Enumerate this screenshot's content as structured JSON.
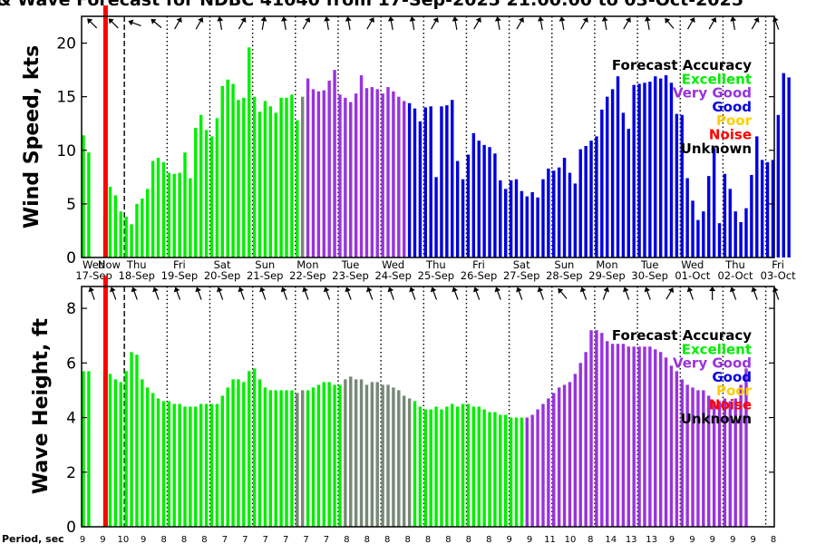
{
  "title": "& Wave Forecast for NDBC 41040 from 17-Sep-2025 21:00:00 to 03-Oct-2025",
  "colors": {
    "excellent": "#00ee00",
    "very_good": "#9933dd",
    "good": "#0000dd",
    "poor": "#ffcc00",
    "noise": "#ff0000",
    "unknown": "#000000",
    "transition": "#778877"
  },
  "day_labels": [
    {
      "dow": "Wed",
      "date": "17-Sep"
    },
    {
      "dow": "Thu",
      "date": "18-Sep"
    },
    {
      "dow": "Fri",
      "date": "19-Sep"
    },
    {
      "dow": "Sat",
      "date": "20-Sep"
    },
    {
      "dow": "Sun",
      "date": "21-Sep"
    },
    {
      "dow": "Mon",
      "date": "22-Sep"
    },
    {
      "dow": "Tue",
      "date": "23-Sep"
    },
    {
      "dow": "Wed",
      "date": "24-Sep"
    },
    {
      "dow": "Thu",
      "date": "25-Sep"
    },
    {
      "dow": "Fri",
      "date": "26-Sep"
    },
    {
      "dow": "Sat",
      "date": "27-Sep"
    },
    {
      "dow": "Sun",
      "date": "28-Sep"
    },
    {
      "dow": "Mon",
      "date": "29-Sep"
    },
    {
      "dow": "Tue",
      "date": "30-Sep"
    },
    {
      "dow": "Wed",
      "date": "01-Oct"
    },
    {
      "dow": "Thu",
      "date": "02-Oct"
    },
    {
      "dow": "Fri",
      "date": "03-Oct"
    }
  ],
  "now_label": "Now",
  "legend": {
    "title": "Forecast Accuracy",
    "items": [
      {
        "label": "Excellent",
        "key": "excellent"
      },
      {
        "label": "Very Good",
        "key": "very_good"
      },
      {
        "label": "Good",
        "key": "good"
      },
      {
        "label": "Poor",
        "key": "poor"
      },
      {
        "label": "Noise",
        "key": "noise"
      },
      {
        "label": "Unknown",
        "key": "unknown"
      }
    ]
  },
  "period_label": "Period, sec",
  "period_values": [
    "9",
    "9",
    "10",
    "9",
    "8",
    "8",
    "8",
    "7",
    "7",
    "7",
    "7",
    "7",
    "7",
    "8",
    "8",
    "8",
    "8",
    "8",
    "8",
    "8",
    "8",
    "9",
    "9",
    "11",
    "10",
    "8",
    "14",
    "13",
    "13",
    "9",
    "9",
    "9",
    "9",
    "9",
    "8"
  ],
  "chart_data": [
    {
      "type": "bar",
      "ylabel": "Wind Speed, kts",
      "ylim": [
        0,
        22.5
      ],
      "yticks": [
        0,
        5,
        10,
        15,
        20
      ],
      "x_range_days": [
        0,
        16.2
      ],
      "now_day": 0.56,
      "bar_spacing_days": 0.125,
      "grid": "dotted vertical lines at day boundaries; dashed before Now",
      "legend_position": "top-right",
      "series": [
        {
          "name": "Excellent",
          "color_key": "excellent",
          "x_start": 0.0,
          "values": [
            11.4,
            9.8,
            0,
            0,
            4.0,
            6.6,
            5.8,
            4.3,
            3.8,
            3.1,
            5.0,
            5.5,
            6.4,
            9.0,
            9.3,
            8.9,
            7.9,
            7.8,
            7.9,
            9.8,
            7.4,
            12.1,
            13.3,
            11.9,
            11.3,
            13.0,
            16.0,
            16.6,
            16.2,
            14.7,
            14.9,
            19.6,
            15.0,
            13.6,
            14.6,
            14.1,
            13.5,
            14.9,
            14.9,
            15.2,
            12.8
          ]
        },
        {
          "name": "Transition",
          "color_key": "transition",
          "x_start": 5.125,
          "values": [
            15.0
          ]
        },
        {
          "name": "Very Good",
          "color_key": "very_good",
          "x_start": 5.25,
          "values": [
            16.7,
            15.7,
            15.5,
            15.6,
            16.5,
            17.5,
            15.2,
            14.9,
            14.5,
            15.3,
            17.0,
            15.8,
            15.9,
            15.7,
            15.3,
            15.9,
            15.5,
            15.0,
            14.6
          ]
        },
        {
          "name": "Good",
          "color_key": "good",
          "x_start": 7.625,
          "values": [
            14.4,
            13.9,
            12.7,
            14.0,
            14.1,
            7.5,
            14.1,
            14.2,
            14.7,
            9.0,
            7.3,
            9.6,
            11.6,
            10.9,
            10.5,
            10.3,
            9.7,
            7.2,
            6.4,
            7.2,
            7.3,
            6.2,
            5.7,
            6.1,
            5.6,
            7.3,
            8.3,
            8.1,
            8.4,
            9.3,
            7.9,
            6.9,
            10.1,
            10.4,
            10.9,
            11.3,
            13.8,
            15.0,
            15.7,
            16.9,
            13.5,
            12.0,
            16.1,
            16.2,
            16.3,
            16.4,
            16.9,
            16.7,
            17.0,
            16.3,
            13.4,
            13.3,
            7.4,
            5.3,
            3.5,
            4.3,
            7.6,
            10.2,
            3.2,
            7.8,
            6.4,
            4.3,
            3.3,
            4.6,
            7.7,
            11.3,
            9.1,
            8.9,
            9.1,
            13.3,
            17.2,
            16.8
          ]
        }
      ]
    },
    {
      "type": "bar",
      "ylabel": "Wave Height, ft",
      "ylim": [
        0,
        8.8
      ],
      "yticks": [
        0,
        2,
        4,
        6,
        8
      ],
      "x_range_days": [
        0,
        16.2
      ],
      "now_day": 0.56,
      "bar_spacing_days": 0.125,
      "grid": "dotted vertical lines at day boundaries; dashed before Now",
      "legend_position": "top-right",
      "series": [
        {
          "name": "Excellent",
          "color_key": "excellent",
          "x_start": 0.0,
          "values": [
            5.7,
            5.7,
            0,
            0,
            5.7,
            5.6,
            5.4,
            5.3,
            5.7,
            6.4,
            6.3,
            5.4,
            5.1,
            4.9,
            4.7,
            4.6,
            4.6,
            4.5,
            4.5,
            4.4,
            4.4,
            4.4,
            4.5,
            4.5,
            4.5,
            4.5,
            4.8,
            5.1,
            5.4,
            5.4,
            5.3,
            5.7,
            5.8,
            5.4,
            5.1,
            5.0,
            5.0,
            5.0,
            5.0,
            5.0,
            4.9
          ]
        },
        {
          "name": "Transition",
          "color_key": "transition",
          "x_start": 5.0,
          "values": [
            4.9,
            5.0
          ]
        },
        {
          "name": "Excellent",
          "color_key": "excellent",
          "x_start": 5.25,
          "values": [
            5.0,
            5.1,
            5.2,
            5.3,
            5.3,
            5.2,
            5.2
          ]
        },
        {
          "name": "Transition",
          "color_key": "transition",
          "x_start": 6.125,
          "values": [
            5.4,
            5.5,
            5.4,
            5.4,
            5.2,
            5.3,
            5.3,
            5.2,
            5.2,
            5.1,
            5.0,
            4.8,
            4.7
          ]
        },
        {
          "name": "Excellent",
          "color_key": "excellent",
          "x_start": 7.75,
          "values": [
            4.6,
            4.4,
            4.3,
            4.3,
            4.4,
            4.3,
            4.4,
            4.5,
            4.4,
            4.5,
            4.5,
            4.4,
            4.4,
            4.3,
            4.2,
            4.2,
            4.1,
            4.1,
            4.0,
            4.0,
            4.0
          ]
        },
        {
          "name": "Very Good",
          "color_key": "very_good",
          "x_start": 10.375,
          "values": [
            4.0,
            4.1,
            4.3,
            4.5,
            4.7,
            4.9,
            5.1,
            5.2,
            5.3,
            5.6,
            6.0,
            6.4,
            7.2,
            7.2,
            7.1,
            6.8,
            6.7,
            6.7,
            6.7,
            6.6,
            6.6,
            6.6,
            6.6,
            6.6,
            6.5,
            6.4,
            6.2,
            5.9,
            5.7,
            5.4,
            5.2,
            5.1,
            5.0,
            5.0,
            4.8,
            4.6,
            4.6,
            4.7,
            4.6,
            4.7,
            5.2,
            5.8
          ]
        }
      ]
    }
  ]
}
